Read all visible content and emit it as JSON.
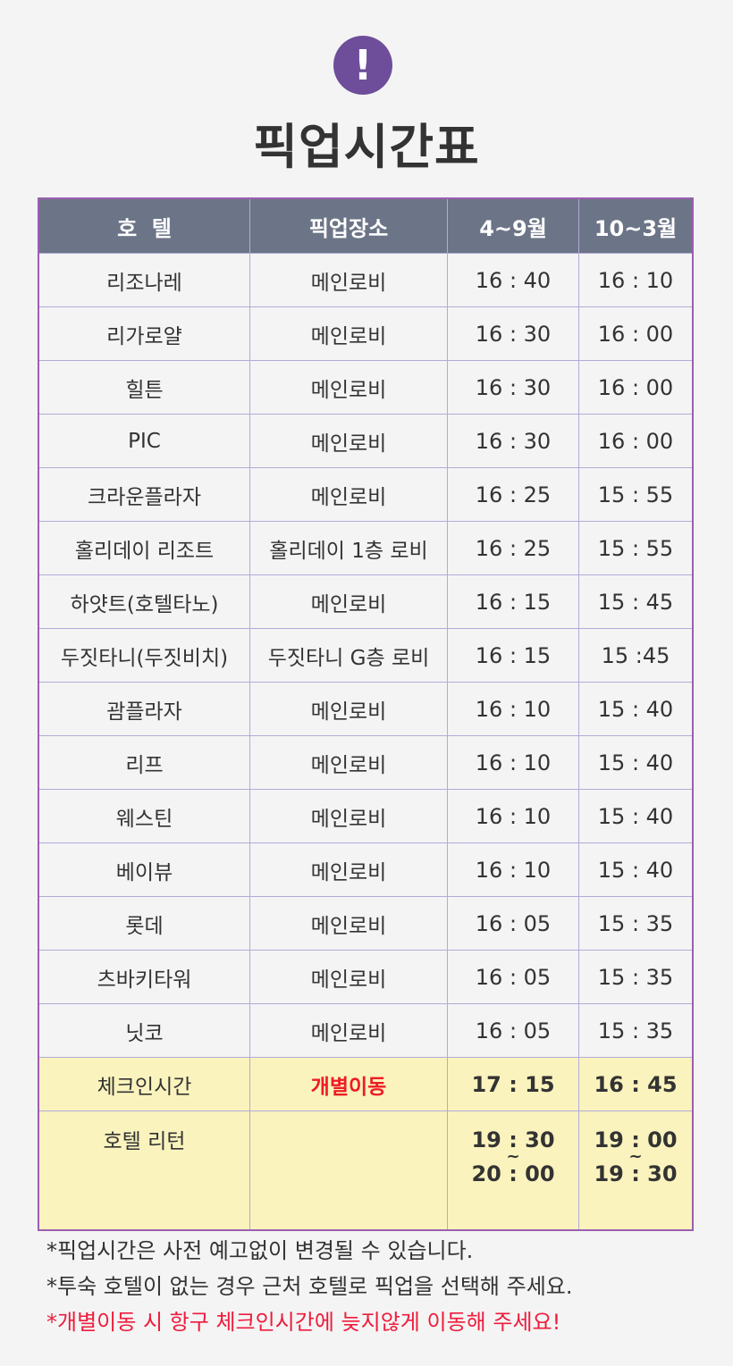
{
  "header": {
    "icon": "exclamation-icon",
    "title": "픽업시간표"
  },
  "table": {
    "columns": [
      "호  텔",
      "픽업장소",
      "4~9월",
      "10~3월"
    ],
    "rows": [
      [
        "리조나레",
        "메인로비",
        "16 : 40",
        "16 : 10"
      ],
      [
        "리가로얄",
        "메인로비",
        "16 : 30",
        "16 : 00"
      ],
      [
        "힐튼",
        "메인로비",
        "16 : 30",
        "16 : 00"
      ],
      [
        "PIC",
        "메인로비",
        "16 : 30",
        "16 : 00"
      ],
      [
        "크라운플라자",
        "메인로비",
        "16 : 25",
        "15 : 55"
      ],
      [
        "홀리데이 리조트",
        "홀리데이 1층 로비",
        "16 : 25",
        "15 : 55"
      ],
      [
        "하얏트(호텔타노)",
        "메인로비",
        "16 : 15",
        "15 : 45"
      ],
      [
        "두짓타니(두짓비치)",
        "두짓타니 G층 로비",
        "16 : 15",
        "15 :45"
      ],
      [
        "괌플라자",
        "메인로비",
        "16 : 10",
        "15 : 40"
      ],
      [
        "리프",
        "메인로비",
        "16 : 10",
        "15 : 40"
      ],
      [
        "웨스틴",
        "메인로비",
        "16 : 10",
        "15 : 40"
      ],
      [
        "베이뷰",
        "메인로비",
        "16 : 10",
        "15 : 40"
      ],
      [
        "롯데",
        "메인로비",
        "16 : 05",
        "15 : 35"
      ],
      [
        "츠바키타워",
        "메인로비",
        "16 : 05",
        "15 : 35"
      ],
      [
        "닛코",
        "메인로비",
        "16 : 05",
        "15 : 35"
      ]
    ],
    "checkin": [
      "체크인시간",
      "개별이동",
      "17 : 15",
      "16 : 45"
    ],
    "return": {
      "label": "호텔 리턴",
      "place": "",
      "summer_from": "19 : 30",
      "summer_to": "20 : 00",
      "winter_from": "19 : 00",
      "winter_to": "19 : 30",
      "tilde": "~"
    }
  },
  "notes": [
    "*픽업시간은 사전 예고없이 변경될 수 있습니다.",
    "*투숙 호텔이 없는 경우 근처 호텔로 픽업을 선택해 주세요.",
    "*개별이동 시 항구 체크인시간에 늦지않게 이동해 주세요!"
  ],
  "colors": {
    "accent": "#6e4d9a",
    "header_bg": "#6c7587",
    "highlight_bg": "#faf3bd",
    "warning": "#ee1c25"
  }
}
